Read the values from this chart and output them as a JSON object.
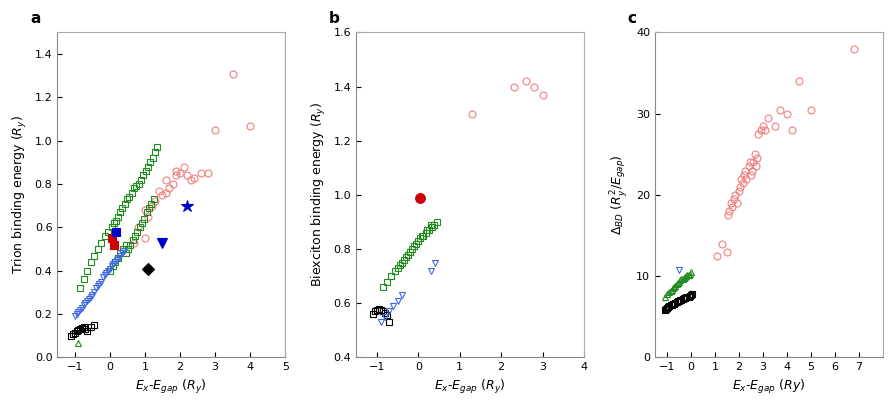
{
  "panel_a": {
    "title": "a",
    "xlabel": "$E_x$-$E_{gap}$ ($R_y$)",
    "ylabel": "Trion binding energy ($R_y$)",
    "xlim": [
      -1.5,
      5
    ],
    "ylim": [
      0,
      1.5
    ],
    "xticks": [
      -1,
      0,
      1,
      2,
      3,
      4,
      5
    ],
    "yticks": [
      0,
      0.2,
      0.4,
      0.6,
      0.8,
      1.0,
      1.2,
      1.4
    ],
    "series": {
      "pink_circles": {
        "x": [
          0.7,
          1.0,
          0.8,
          1.1,
          1.2,
          1.0,
          1.3,
          1.5,
          1.4,
          1.6,
          1.7,
          1.6,
          1.8,
          1.9,
          2.0,
          2.1,
          1.9,
          2.2,
          2.3,
          2.4,
          2.6,
          2.8,
          3.0,
          3.5,
          4.0
        ],
        "y": [
          0.53,
          0.55,
          0.6,
          0.65,
          0.7,
          0.68,
          0.72,
          0.75,
          0.77,
          0.76,
          0.78,
          0.82,
          0.8,
          0.84,
          0.85,
          0.88,
          0.86,
          0.84,
          0.82,
          0.83,
          0.85,
          0.85,
          1.05,
          1.31,
          1.07
        ],
        "color": "#f08080",
        "marker": "o",
        "filled": false,
        "ms": 5
      },
      "green_squares": {
        "x": [
          -0.85,
          -0.75,
          -0.65,
          -0.55,
          -0.45,
          -0.35,
          -0.25,
          -0.15,
          -0.05,
          0.05,
          0.12,
          0.18,
          0.22,
          0.28,
          0.35,
          0.42,
          0.48,
          0.55,
          0.62,
          0.68,
          0.75,
          0.82,
          0.88,
          0.95,
          1.02,
          1.08,
          1.15,
          1.22,
          1.28,
          1.35,
          0.45,
          0.52,
          0.58,
          0.65,
          0.72,
          0.78,
          0.85,
          0.92,
          0.98,
          1.05,
          1.12,
          1.18,
          1.25,
          0.0,
          0.08,
          0.15,
          0.22,
          0.3,
          0.38,
          0.45
        ],
        "y": [
          0.32,
          0.36,
          0.4,
          0.44,
          0.47,
          0.5,
          0.53,
          0.56,
          0.58,
          0.6,
          0.62,
          0.63,
          0.65,
          0.67,
          0.69,
          0.71,
          0.73,
          0.74,
          0.76,
          0.78,
          0.79,
          0.8,
          0.82,
          0.84,
          0.86,
          0.88,
          0.9,
          0.92,
          0.95,
          0.97,
          0.48,
          0.5,
          0.52,
          0.54,
          0.56,
          0.58,
          0.6,
          0.62,
          0.64,
          0.67,
          0.69,
          0.71,
          0.73,
          0.4,
          0.42,
          0.44,
          0.46,
          0.48,
          0.5,
          0.52
        ],
        "color": "#228B22",
        "marker": "s",
        "filled": false,
        "ms": 4.5
      },
      "black_squares": {
        "x": [
          -1.1,
          -1.05,
          -1.0,
          -0.95,
          -0.9,
          -0.85,
          -0.8,
          -0.75,
          -0.7,
          -0.65,
          -0.55,
          -0.45
        ],
        "y": [
          0.1,
          0.11,
          0.115,
          0.12,
          0.125,
          0.13,
          0.135,
          0.14,
          0.13,
          0.12,
          0.14,
          0.15
        ],
        "color": "#000000",
        "marker": "s",
        "filled": false,
        "ms": 4.5
      },
      "blue_triangles": {
        "x": [
          -1.0,
          -0.95,
          -0.9,
          -0.85,
          -0.8,
          -0.75,
          -0.7,
          -0.65,
          -0.6,
          -0.55,
          -0.5,
          -0.45,
          -0.4,
          -0.35,
          -0.3,
          -0.25,
          -0.2,
          -0.15,
          -0.1,
          -0.05,
          0.0,
          0.05,
          0.1,
          0.15,
          0.2,
          0.25,
          0.3,
          0.35,
          0.4
        ],
        "y": [
          0.19,
          0.2,
          0.21,
          0.22,
          0.23,
          0.24,
          0.25,
          0.26,
          0.27,
          0.28,
          0.29,
          0.3,
          0.32,
          0.33,
          0.34,
          0.35,
          0.37,
          0.38,
          0.39,
          0.4,
          0.41,
          0.42,
          0.43,
          0.44,
          0.45,
          0.46,
          0.47,
          0.48,
          0.49
        ],
        "color": "#4169E1",
        "marker": "v",
        "filled": false,
        "ms": 5
      },
      "red_squares": {
        "x": [
          0.05,
          0.12
        ],
        "y": [
          0.55,
          0.52
        ],
        "color": "#cc0000",
        "marker": "s",
        "filled": true,
        "ms": 6
      },
      "blue_star": {
        "x": [
          2.2
        ],
        "y": [
          0.7
        ],
        "color": "#0000cc",
        "marker": "*",
        "filled": true,
        "ms": 9
      },
      "blue_filled_triangle": {
        "x": [
          1.5
        ],
        "y": [
          0.53
        ],
        "color": "#0000cc",
        "marker": "v",
        "filled": true,
        "ms": 7
      },
      "black_diamond": {
        "x": [
          1.1
        ],
        "y": [
          0.41
        ],
        "color": "#000000",
        "marker": "D",
        "filled": true,
        "ms": 6
      },
      "blue_filled_square": {
        "x": [
          0.18
        ],
        "y": [
          0.58
        ],
        "color": "#0000cc",
        "marker": "s",
        "filled": true,
        "ms": 6
      },
      "green_triangle_open": {
        "x": [
          -0.9
        ],
        "y": [
          0.065
        ],
        "color": "#228B22",
        "marker": "^",
        "filled": false,
        "ms": 5
      }
    }
  },
  "panel_b": {
    "title": "b",
    "xlabel": "$E_x$-$E_{gap}$ ($R_y$)",
    "ylabel": "Biexciton binding energy ($R_y$)",
    "xlim": [
      -1.5,
      4
    ],
    "ylim": [
      0.4,
      1.6
    ],
    "xticks": [
      -1,
      0,
      1,
      2,
      3,
      4
    ],
    "yticks": [
      0.4,
      0.6,
      0.8,
      1.0,
      1.2,
      1.4,
      1.6
    ],
    "series": {
      "pink_circles": {
        "x": [
          1.3,
          2.3,
          2.6,
          2.8,
          3.0
        ],
        "y": [
          1.3,
          1.4,
          1.42,
          1.4,
          1.37
        ],
        "color": "#f08080",
        "marker": "o",
        "filled": false,
        "ms": 5
      },
      "green_squares": {
        "x": [
          -0.85,
          -0.75,
          -0.65,
          -0.55,
          -0.45,
          -0.35,
          -0.25,
          -0.15,
          -0.05,
          0.05,
          0.12,
          0.18,
          0.25,
          0.32,
          0.38,
          0.45,
          -0.5,
          -0.4,
          -0.3,
          -0.2,
          -0.1,
          0.0,
          0.1,
          0.2,
          0.3
        ],
        "y": [
          0.66,
          0.68,
          0.7,
          0.72,
          0.74,
          0.76,
          0.78,
          0.8,
          0.82,
          0.84,
          0.85,
          0.86,
          0.87,
          0.88,
          0.89,
          0.9,
          0.73,
          0.75,
          0.77,
          0.79,
          0.81,
          0.83,
          0.85,
          0.87,
          0.89
        ],
        "color": "#228B22",
        "marker": "s",
        "filled": false,
        "ms": 4.5
      },
      "black_squares": {
        "x": [
          -1.1,
          -1.05,
          -1.0,
          -0.95,
          -0.9,
          -0.85,
          -0.8,
          -0.75,
          -0.7
        ],
        "y": [
          0.56,
          0.57,
          0.575,
          0.58,
          0.575,
          0.57,
          0.565,
          0.555,
          0.53
        ],
        "color": "#000000",
        "marker": "s",
        "filled": false,
        "ms": 4.5
      },
      "blue_triangles": {
        "x": [
          -0.9,
          -0.8,
          -0.7,
          -0.6,
          -0.5,
          -0.4,
          0.3,
          0.4
        ],
        "y": [
          0.53,
          0.55,
          0.57,
          0.59,
          0.61,
          0.63,
          0.72,
          0.75
        ],
        "color": "#4169E1",
        "marker": "v",
        "filled": false,
        "ms": 5
      },
      "red_circle_filled": {
        "x": [
          0.05
        ],
        "y": [
          0.99
        ],
        "color": "#cc0000",
        "marker": "o",
        "filled": true,
        "ms": 7
      }
    }
  },
  "panel_c": {
    "title": "c",
    "xlabel": "$E_x$-$E_{gap}$ ($Ry$)",
    "ylabel": "$\\Delta_{BD}$ ($R_y^2$/$E_{gap}$)",
    "xlim": [
      -1.5,
      8
    ],
    "ylim": [
      0,
      40
    ],
    "xticks": [
      -1,
      0,
      1,
      2,
      3,
      4,
      5,
      6,
      7
    ],
    "yticks": [
      0,
      10,
      20,
      30,
      40
    ],
    "series": {
      "pink_circles": {
        "x": [
          1.1,
          1.3,
          1.5,
          1.55,
          1.6,
          1.65,
          1.7,
          1.8,
          1.85,
          1.9,
          2.0,
          2.05,
          2.1,
          2.15,
          2.2,
          2.25,
          2.3,
          2.4,
          2.45,
          2.5,
          2.55,
          2.6,
          2.65,
          2.7,
          2.75,
          2.8,
          2.9,
          3.0,
          3.1,
          3.2,
          3.5,
          3.7,
          4.0,
          4.2,
          4.5,
          5.0,
          6.8
        ],
        "y": [
          12.5,
          14.0,
          13.0,
          17.5,
          18.0,
          19.0,
          18.5,
          19.5,
          20.0,
          19.0,
          20.5,
          21.0,
          22.0,
          21.5,
          22.5,
          23.0,
          22.0,
          23.5,
          24.0,
          22.5,
          23.0,
          24.0,
          25.0,
          23.5,
          24.5,
          27.5,
          28.0,
          28.5,
          28.0,
          29.5,
          28.5,
          30.5,
          30.0,
          28.0,
          34.0,
          30.5,
          38.0
        ],
        "color": "#f08080",
        "marker": "o",
        "filled": false,
        "ms": 5
      },
      "green_triangles": {
        "x": [
          -1.1,
          -1.0,
          -0.9,
          -0.85,
          -0.8,
          -0.75,
          -0.7,
          -0.65,
          -0.6,
          -0.55,
          -0.5,
          -0.45,
          -0.4,
          -0.35,
          -0.3,
          -0.25,
          -0.2,
          -0.15,
          -0.1,
          -0.05,
          0.0
        ],
        "y": [
          7.5,
          7.8,
          8.0,
          8.2,
          8.3,
          8.5,
          8.7,
          8.8,
          9.0,
          9.2,
          9.3,
          9.5,
          9.6,
          9.7,
          9.8,
          9.9,
          10.0,
          10.1,
          10.2,
          10.3,
          10.5
        ],
        "color": "#228B22",
        "marker": "^",
        "filled": false,
        "ms": 5
      },
      "black_squares": {
        "x": [
          -1.1,
          -1.05,
          -1.0,
          -0.95,
          -0.9,
          -0.85,
          -0.8,
          -0.75,
          -0.7,
          -0.65,
          -0.6,
          -0.55,
          -0.5,
          -0.45,
          -0.4,
          -0.35,
          -0.3,
          -0.25,
          -0.2,
          -0.15,
          -0.1,
          -0.05,
          0.0,
          0.05
        ],
        "y": [
          5.8,
          6.0,
          6.1,
          6.2,
          6.3,
          6.4,
          6.5,
          6.55,
          6.6,
          6.7,
          6.8,
          6.9,
          7.0,
          7.05,
          7.1,
          7.2,
          7.3,
          7.3,
          7.4,
          7.45,
          7.5,
          7.6,
          7.7,
          7.8
        ],
        "color": "#000000",
        "marker": "s",
        "filled": false,
        "ms": 4.5
      },
      "blue_triangle": {
        "x": [
          -0.5
        ],
        "y": [
          10.8
        ],
        "color": "#4169E1",
        "marker": "v",
        "filled": false,
        "ms": 5
      }
    }
  }
}
